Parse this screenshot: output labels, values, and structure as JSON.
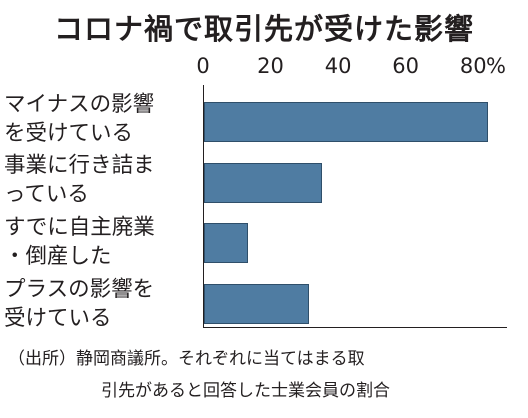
{
  "chart_data": {
    "type": "bar",
    "orientation": "horizontal",
    "title": "コロナ禍で取引先が受けた影響",
    "categories": [
      [
        "マイナスの影響",
        "を受けている"
      ],
      [
        "事業に行き詰ま",
        "っている"
      ],
      [
        "すでに自主廃業",
        "・倒産した"
      ],
      [
        "プラスの影響を",
        "受けている"
      ]
    ],
    "values": [
      84,
      35,
      13,
      31
    ],
    "x_ticks": [
      "0",
      "20",
      "40",
      "60",
      "80"
    ],
    "x_tick_values": [
      0,
      20,
      40,
      60,
      80
    ],
    "unit": "%",
    "xlim": [
      0,
      90
    ],
    "grid": false,
    "bar_color": "#4f7ca2"
  },
  "source": {
    "line1": "（出所）静岡商議所。それぞれに当てはまる取",
    "line2": "引先があると回答した士業会員の割合"
  }
}
